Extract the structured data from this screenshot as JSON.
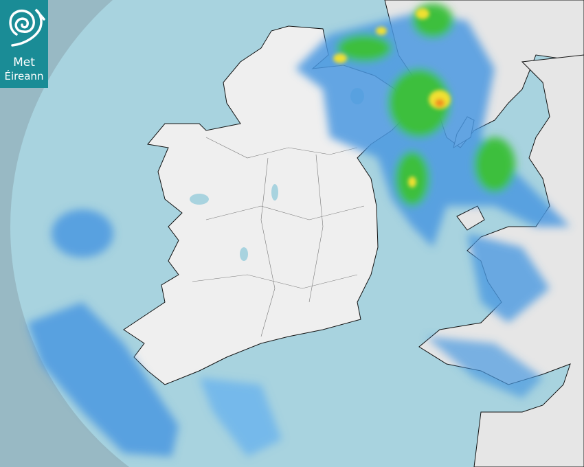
{
  "logo": {
    "line1": "Met",
    "line2": "Éireann",
    "icon": "spiral-icon"
  },
  "colors": {
    "outside_range": "#98b9c4",
    "radar_range": "#a8d3df",
    "land": "#efefef",
    "rain_light": "#4a98e0",
    "rain_moderate": "#3cbf3c",
    "rain_heavy": "#f0e030",
    "rain_very_heavy": "#f09020"
  }
}
